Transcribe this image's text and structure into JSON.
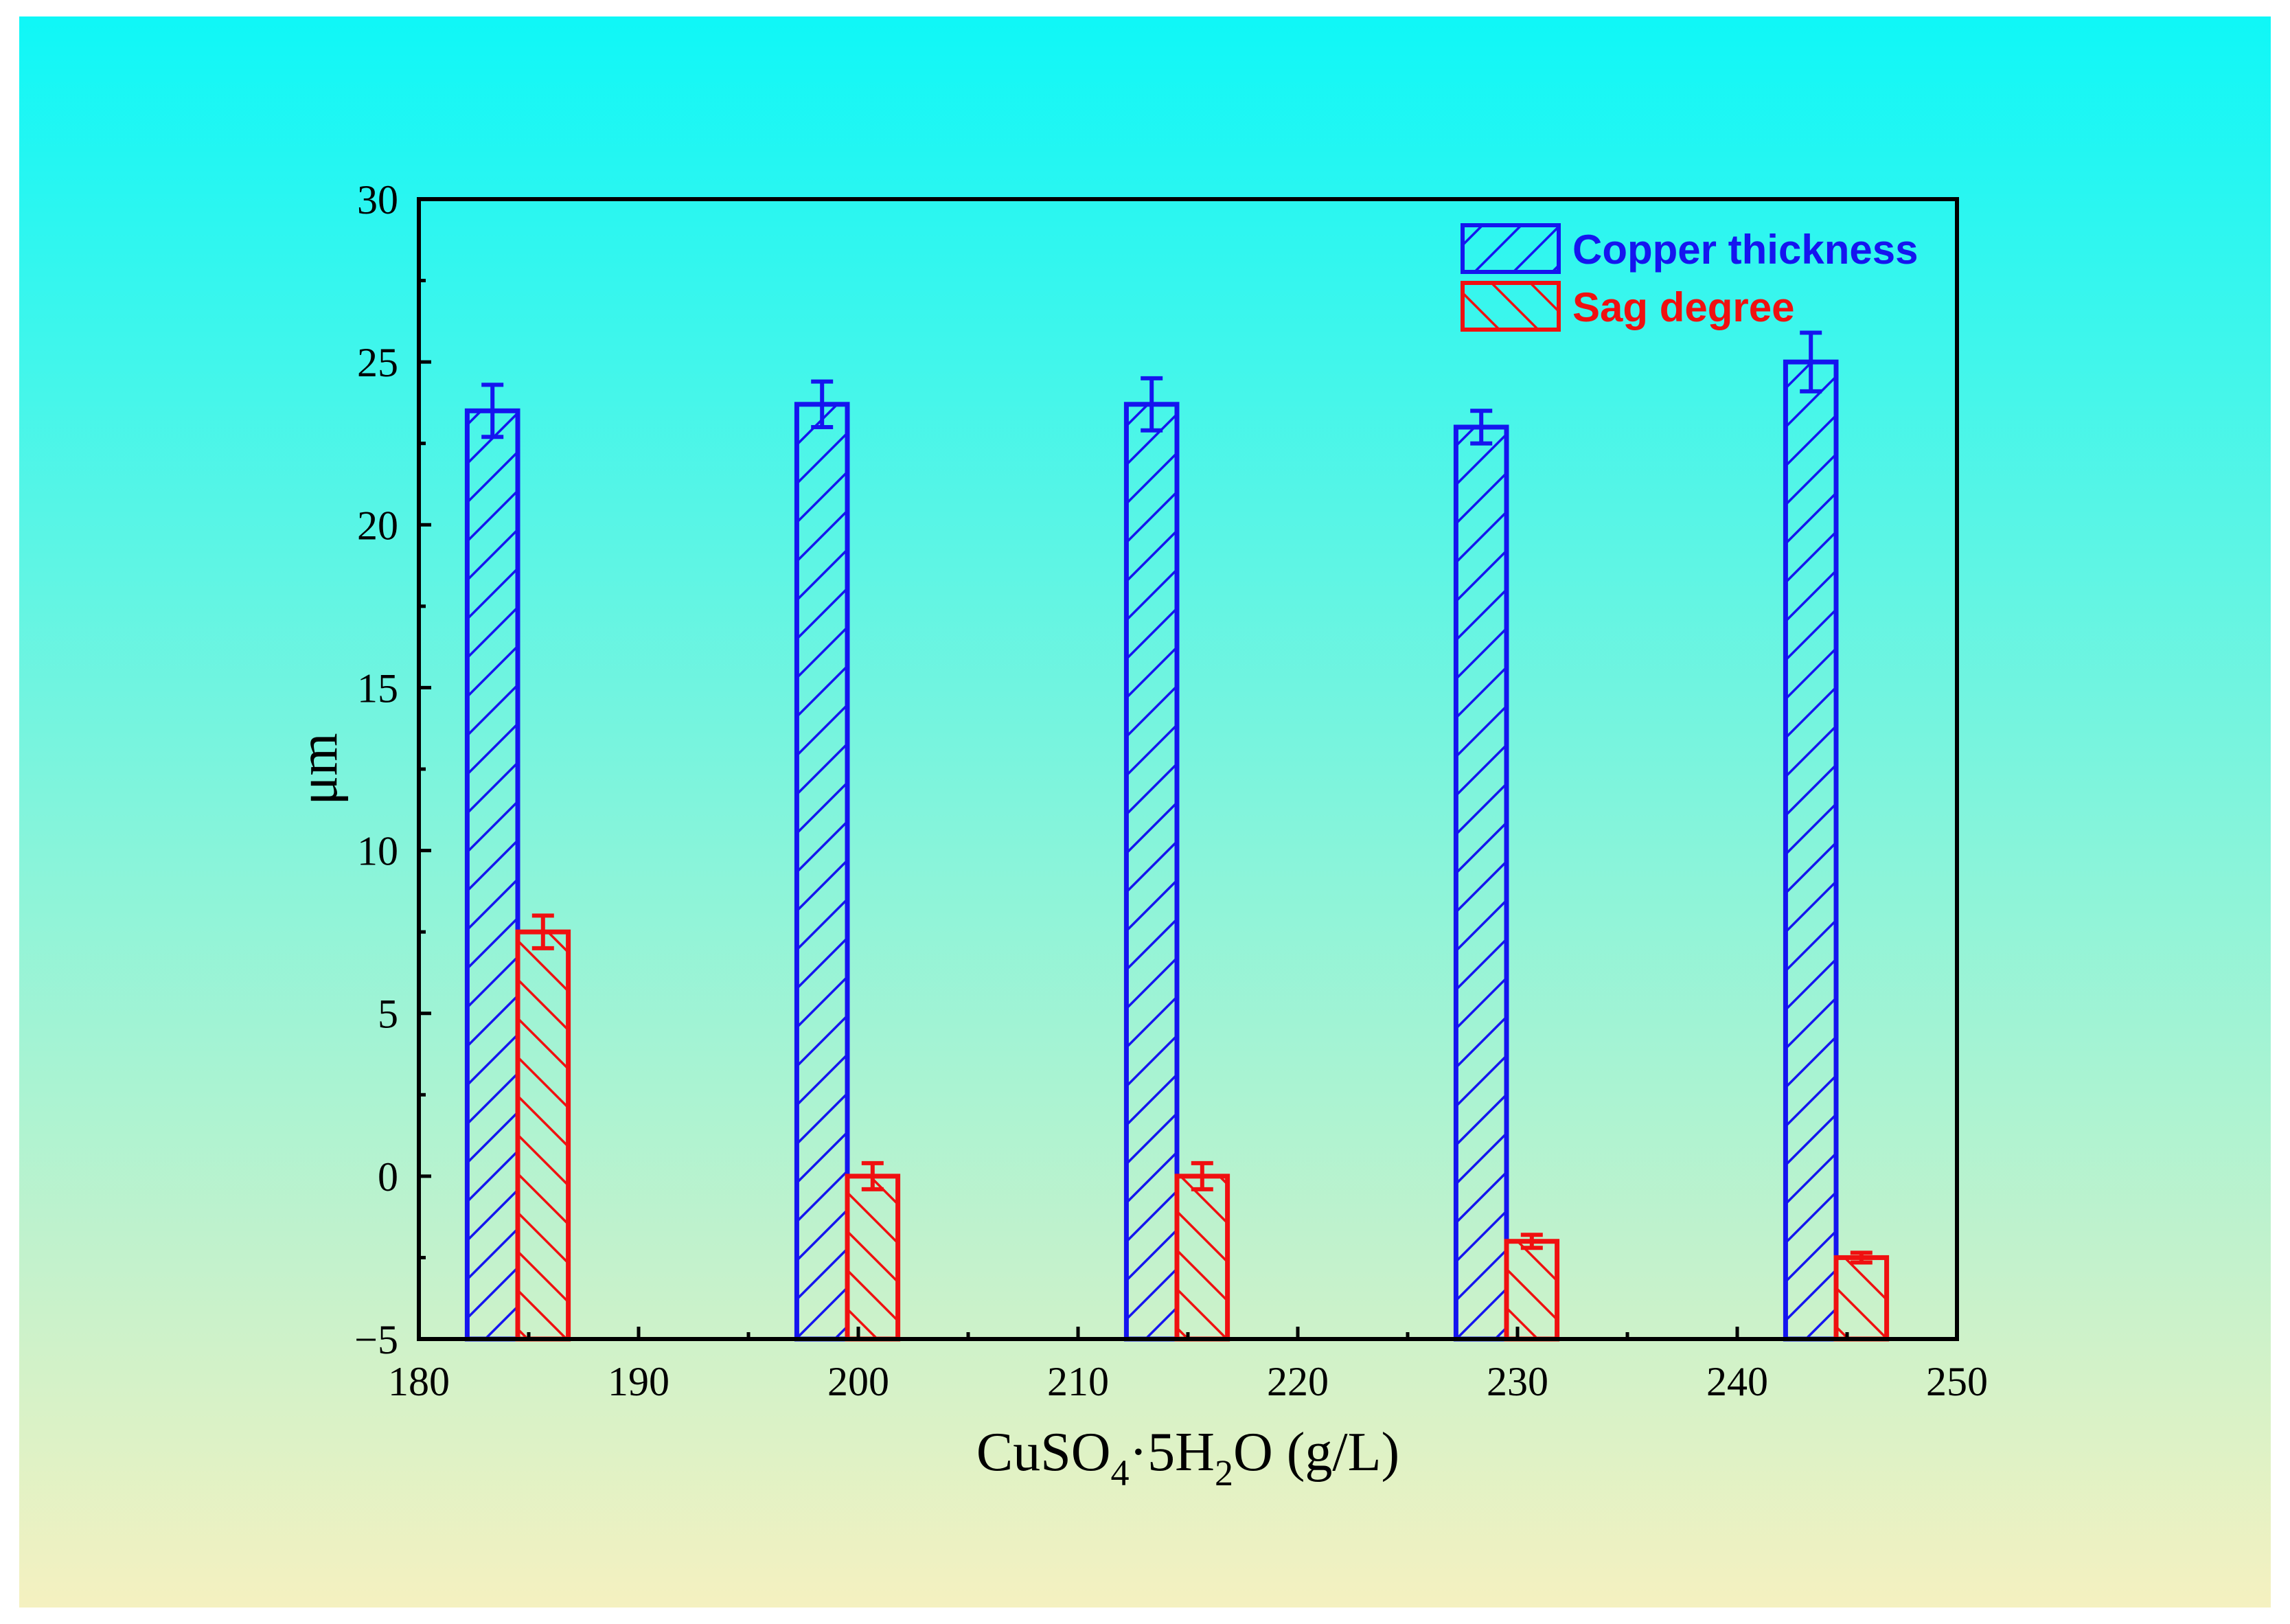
{
  "chart_data": {
    "type": "bar",
    "title": "",
    "xlabel": "CuSO4·5H2O (g/L)",
    "xlabel_parts": {
      "main": "CuSO",
      "sub1": "4",
      "mid": "·5H",
      "sub2": "2",
      "tail": "O (g/L)"
    },
    "ylabel": "μm",
    "xlim": [
      180,
      250
    ],
    "ylim": [
      -5,
      30
    ],
    "x_ticks": [
      180,
      190,
      200,
      210,
      220,
      230,
      240,
      250
    ],
    "y_ticks": [
      -5,
      0,
      5,
      10,
      15,
      20,
      25,
      30
    ],
    "y_tick_labels": [
      "−5",
      "0",
      "5",
      "10",
      "15",
      "20",
      "25",
      "30"
    ],
    "x": [
      184.5,
      199.5,
      214.5,
      229.5,
      244.5
    ],
    "bar_half_width": 1.15,
    "background_gradient": [
      "#0ff7f7",
      "#f5f1c0"
    ],
    "series": [
      {
        "name": "Copper thickness",
        "color": "#1515ef",
        "hatch": "back-diagonal",
        "offset": -1.15,
        "values": [
          23.5,
          23.7,
          23.7,
          23.0,
          25.0
        ],
        "errors": [
          0.8,
          0.7,
          0.8,
          0.5,
          0.9
        ]
      },
      {
        "name": "Sag degree",
        "color": "#f01010",
        "hatch": "forward-diagonal",
        "offset": 1.15,
        "values": [
          7.5,
          0.0,
          0.0,
          -2.0,
          -2.5
        ],
        "errors": [
          0.5,
          0.4,
          0.4,
          0.2,
          0.15
        ]
      }
    ],
    "legend_position": "top-right"
  }
}
